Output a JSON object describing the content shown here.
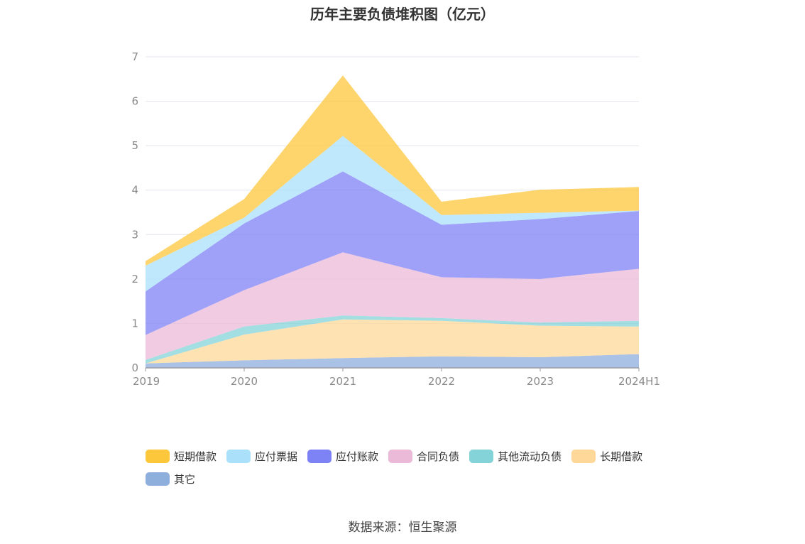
{
  "chart_data": {
    "type": "area",
    "stacked": true,
    "title": "历年主要负债堆积图（亿元）",
    "categories": [
      "2019",
      "2020",
      "2021",
      "2022",
      "2023",
      "2024H1"
    ],
    "ylim": [
      0,
      7
    ],
    "yticks": [
      0,
      1,
      2,
      3,
      4,
      5,
      6,
      7
    ],
    "grid": true,
    "legend_position": "bottom",
    "series": [
      {
        "name": "其它",
        "color": "#8eaedc",
        "values": [
          0.1,
          0.17,
          0.22,
          0.26,
          0.24,
          0.31
        ]
      },
      {
        "name": "长期借款",
        "color": "#fdd898",
        "values": [
          0.0,
          0.58,
          0.87,
          0.8,
          0.71,
          0.62
        ]
      },
      {
        "name": "其他流动负债",
        "color": "#84d3d8",
        "values": [
          0.08,
          0.18,
          0.09,
          0.06,
          0.07,
          0.13
        ]
      },
      {
        "name": "合同负债",
        "color": "#ebbad8",
        "values": [
          0.56,
          0.82,
          1.42,
          0.92,
          0.98,
          1.17
        ]
      },
      {
        "name": "应付账款",
        "color": "#7d82f4",
        "values": [
          0.98,
          1.5,
          1.82,
          1.18,
          1.35,
          1.3
        ]
      },
      {
        "name": "应付票据",
        "color": "#abe0fb",
        "values": [
          0.58,
          0.13,
          0.8,
          0.22,
          0.14,
          0.01
        ]
      },
      {
        "name": "短期借款",
        "color": "#fdc73c",
        "values": [
          0.1,
          0.42,
          1.36,
          0.3,
          0.52,
          0.53
        ]
      }
    ],
    "legend_order": [
      "短期借款",
      "应付票据",
      "应付账款",
      "合同负债",
      "其他流动负债",
      "长期借款",
      "其它"
    ]
  },
  "source_note": "数据来源：恒生聚源"
}
